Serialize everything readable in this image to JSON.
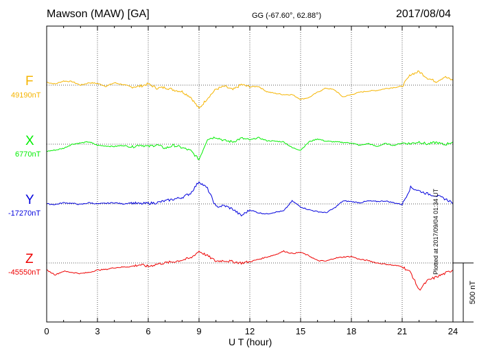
{
  "header": {
    "title": "Mawson (MAW)  [GA]",
    "coords": "GG (-67.60°,  62.88°)",
    "date": "2017/08/04"
  },
  "footer": {
    "plotted": "Plotted at 2017/09/04 01:34 UT"
  },
  "chart_data": {
    "type": "line",
    "xlabel": "U T (hour)",
    "xlim": [
      0,
      24
    ],
    "xticks": [
      0,
      3,
      6,
      9,
      12,
      15,
      18,
      21,
      24
    ],
    "grid": true,
    "scale_bar": "500 nT",
    "series": [
      {
        "name": "F",
        "baseline": "49190nT",
        "color": "#f5b400",
        "x": [
          0,
          0.5,
          1,
          1.5,
          2,
          2.5,
          3,
          3.5,
          4,
          4.5,
          5,
          5.5,
          6,
          6.5,
          7,
          7.5,
          8,
          8.5,
          9,
          9.5,
          10,
          10.5,
          11,
          11.5,
          12,
          12.5,
          13,
          13.5,
          14,
          14.5,
          15,
          15.5,
          16,
          16.5,
          17,
          17.5,
          18,
          18.5,
          19,
          19.5,
          20,
          20.5,
          21,
          21.5,
          22,
          22.5,
          23,
          23.5,
          24
        ],
        "y": [
          25,
          10,
          35,
          30,
          0,
          20,
          15,
          -10,
          20,
          5,
          -15,
          -10,
          10,
          -25,
          -20,
          -40,
          -55,
          -100,
          -200,
          -110,
          -35,
          -10,
          -40,
          5,
          -15,
          -10,
          -55,
          -70,
          -80,
          -80,
          -120,
          -105,
          -60,
          -25,
          -40,
          -100,
          -80,
          -60,
          -50,
          -45,
          -30,
          -20,
          -10,
          90,
          115,
          60,
          30,
          70,
          40
        ]
      },
      {
        "name": "X",
        "baseline": "6770nT",
        "color": "#00ee00",
        "x": [
          0,
          0.5,
          1,
          1.5,
          2,
          2.5,
          3,
          3.5,
          4,
          4.5,
          5,
          5.5,
          6,
          6.5,
          7,
          7.5,
          8,
          8.5,
          9,
          9.5,
          10,
          10.5,
          11,
          11.5,
          12,
          12.5,
          13,
          13.5,
          14,
          14.5,
          15,
          15.5,
          16,
          16.5,
          17,
          17.5,
          18,
          18.5,
          19,
          19.5,
          20,
          20.5,
          21,
          21.5,
          22,
          22.5,
          23,
          23.5,
          24
        ],
        "y": [
          -60,
          -50,
          -35,
          0,
          10,
          20,
          -10,
          -15,
          -20,
          -10,
          -25,
          -5,
          -20,
          -5,
          -35,
          -10,
          -30,
          -55,
          -130,
          45,
          60,
          30,
          20,
          50,
          35,
          55,
          30,
          25,
          20,
          -30,
          -50,
          20,
          45,
          25,
          20,
          15,
          10,
          -10,
          5,
          -20,
          5,
          -10,
          10,
          5,
          20,
          0,
          15,
          -5,
          20
        ]
      },
      {
        "name": "Y",
        "baseline": "-17270nT",
        "color": "#0000dd",
        "x": [
          0,
          0.5,
          1,
          1.5,
          2,
          2.5,
          3,
          3.5,
          4,
          4.5,
          5,
          5.5,
          6,
          6.5,
          7,
          7.5,
          8,
          8.5,
          9,
          9.5,
          10,
          10.5,
          11,
          11.5,
          12,
          12.5,
          13,
          13.5,
          14,
          14.5,
          15,
          15.5,
          16,
          16.5,
          17,
          17.5,
          18,
          18.5,
          19,
          19.5,
          20,
          20.5,
          21,
          21.5,
          22,
          22.5,
          23,
          23.5,
          24
        ],
        "y": [
          0,
          -5,
          10,
          5,
          -5,
          10,
          0,
          5,
          10,
          0,
          10,
          0,
          5,
          10,
          25,
          40,
          55,
          90,
          190,
          130,
          -25,
          -15,
          -45,
          -100,
          -50,
          -75,
          -85,
          -70,
          -60,
          25,
          -25,
          -50,
          -65,
          -75,
          -35,
          25,
          20,
          10,
          25,
          20,
          25,
          10,
          -5,
          140,
          110,
          85,
          70,
          45,
          10
        ]
      },
      {
        "name": "Z",
        "baseline": "-45550nT",
        "color": "#ee0000",
        "x": [
          0,
          0.5,
          1,
          1.5,
          2,
          2.5,
          3,
          3.5,
          4,
          4.5,
          5,
          5.5,
          6,
          6.5,
          7,
          7.5,
          8,
          8.5,
          9,
          9.5,
          10,
          10.5,
          11,
          11.5,
          12,
          12.5,
          13,
          13.5,
          14,
          14.5,
          15,
          15.5,
          16,
          16.5,
          17,
          17.5,
          18,
          18.5,
          19,
          19.5,
          20,
          20.5,
          21,
          21.5,
          22,
          22.5,
          23,
          23.5,
          24
        ],
        "y": [
          -60,
          -100,
          -70,
          -80,
          -90,
          -80,
          -60,
          -55,
          -40,
          -35,
          -30,
          -15,
          -30,
          -10,
          0,
          10,
          25,
          40,
          100,
          60,
          15,
          20,
          10,
          0,
          10,
          30,
          50,
          70,
          100,
          80,
          90,
          60,
          20,
          15,
          40,
          50,
          55,
          30,
          20,
          0,
          -10,
          -20,
          -30,
          -80,
          -230,
          -150,
          -120,
          -90,
          -60
        ]
      }
    ]
  }
}
